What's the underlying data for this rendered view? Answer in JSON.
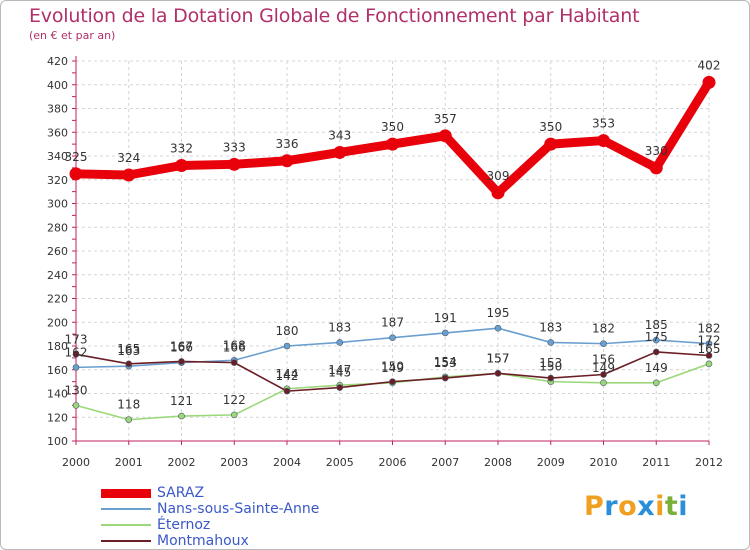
{
  "title": "Evolution de la Dotation Globale de Fonctionnement par Habitant",
  "subtitle": "(en € et par an)",
  "logo": {
    "letters": [
      "P",
      "r",
      "o",
      "x",
      "i",
      "t",
      "i"
    ],
    "colors": [
      "#f0a020",
      "#2a8fd8",
      "#f0a020",
      "#2a8fd8",
      "#f0a020",
      "#7ab03a",
      "#2a8fd8"
    ]
  },
  "chart_data": {
    "type": "line",
    "x": [
      "2000",
      "2001",
      "2002",
      "2003",
      "2004",
      "2005",
      "2006",
      "2007",
      "2008",
      "2009",
      "2010",
      "2011",
      "2012"
    ],
    "ylim": [
      100,
      420
    ],
    "yticks": [
      100,
      120,
      140,
      160,
      180,
      200,
      220,
      240,
      260,
      280,
      300,
      320,
      340,
      360,
      380,
      400,
      420
    ],
    "grid": true,
    "legend_position": "bottom-left",
    "series": [
      {
        "name": "SARAZ",
        "color": "#e8000b",
        "values": [
          325,
          324,
          332,
          333,
          336,
          343,
          350,
          357,
          309,
          350,
          353,
          330,
          402
        ]
      },
      {
        "name": "Nans-sous-Sainte-Anne",
        "color": "#6a9fd0",
        "values": [
          162,
          163,
          166,
          168,
          180,
          183,
          187,
          191,
          195,
          183,
          182,
          185,
          182
        ]
      },
      {
        "name": "Éternoz",
        "color": "#9cd87a",
        "values": [
          130,
          118,
          121,
          122,
          144,
          147,
          149,
          154,
          157,
          150,
          149,
          149,
          165
        ]
      },
      {
        "name": "Montmahoux",
        "color": "#6b1e26",
        "values": [
          173,
          165,
          167,
          166,
          142,
          145,
          150,
          153,
          157,
          153,
          156,
          175,
          172
        ]
      }
    ]
  }
}
